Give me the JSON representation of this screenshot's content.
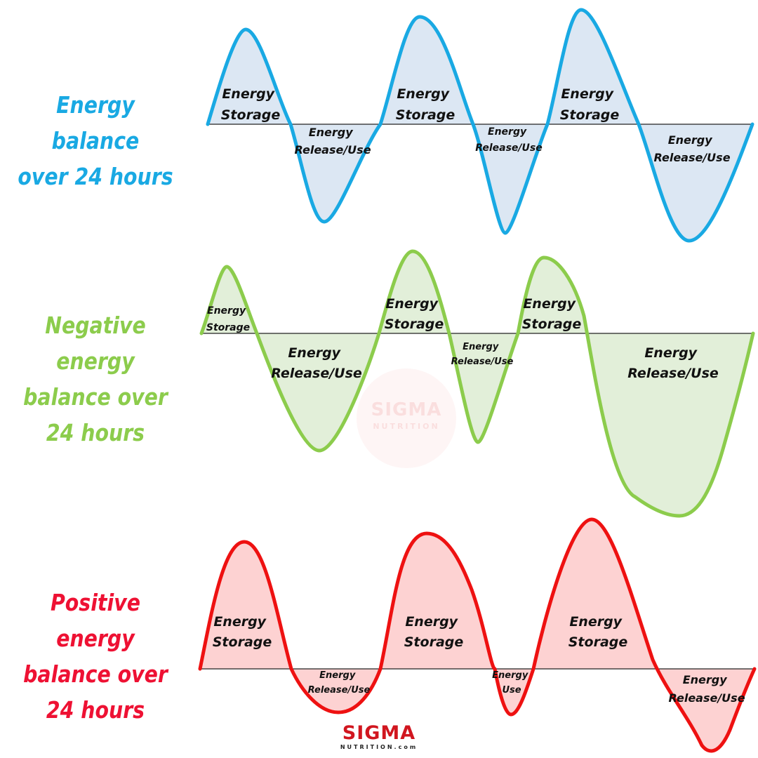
{
  "colors": {
    "blue_stroke": "#19a9e3",
    "blue_fill": "#dce7f3",
    "green_stroke": "#8ccc4c",
    "green_fill": "#e2efd9",
    "red_stroke": "#ee1111",
    "red_fill": "#fdd2d2",
    "logo_red": "#d1161f"
  },
  "rows": [
    {
      "title_lines": [
        "Energy balance",
        "over 24 hours"
      ],
      "color": "blue",
      "labels": [
        {
          "lines": [
            "Energy",
            "Storage"
          ]
        },
        {
          "lines": [
            "Energy",
            "Release/Use"
          ]
        },
        {
          "lines": [
            "Energy",
            "Storage"
          ]
        },
        {
          "lines": [
            "Energy",
            "Release/Use"
          ]
        },
        {
          "lines": [
            "Energy",
            "Storage"
          ]
        },
        {
          "lines": [
            "Energy",
            "Release/Use"
          ]
        }
      ]
    },
    {
      "title_lines": [
        "Negative energy",
        "balance over",
        "24 hours"
      ],
      "color": "green",
      "labels": [
        {
          "lines": [
            "Energy",
            "Storage"
          ]
        },
        {
          "lines": [
            "Energy",
            "Release/Use"
          ]
        },
        {
          "lines": [
            "Energy",
            "Storage"
          ]
        },
        {
          "lines": [
            "Energy",
            "Release/Use"
          ]
        },
        {
          "lines": [
            "Energy",
            "Storage"
          ]
        },
        {
          "lines": [
            "Energy",
            "Release/Use"
          ]
        }
      ]
    },
    {
      "title_lines": [
        "Positive energy",
        "balance over",
        "24 hours"
      ],
      "color": "red",
      "labels": [
        {
          "lines": [
            "Energy",
            "Storage"
          ]
        },
        {
          "lines": [
            "Energy",
            "Release/Use"
          ]
        },
        {
          "lines": [
            "Energy",
            "Storage"
          ]
        },
        {
          "lines": [
            "Energy",
            "Use"
          ]
        },
        {
          "lines": [
            "Energy",
            "Storage"
          ]
        },
        {
          "lines": [
            "Energy",
            "Release/Use"
          ]
        }
      ]
    }
  ],
  "watermark": {
    "main": "SIGMA",
    "sub": "NUTRITION"
  },
  "logo": {
    "main": "SIGMA",
    "sub": "NUTRITION.com"
  }
}
